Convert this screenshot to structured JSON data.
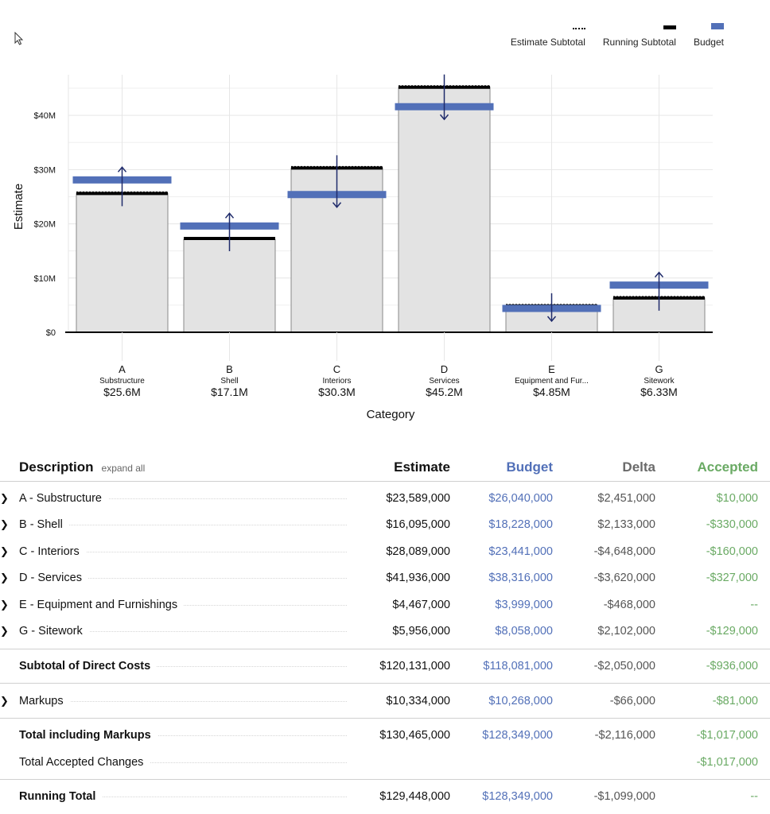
{
  "legend": {
    "estimate_subtotal": "Estimate Subtotal",
    "running_subtotal": "Running Subtotal",
    "budget": "Budget"
  },
  "colors": {
    "budget": "#5270b8",
    "accepted": "#6aaa64",
    "bar_fill": "#e3e3e3"
  },
  "chart_data": {
    "type": "bar",
    "xlabel": "Category",
    "ylabel": "Estimate",
    "ylim": [
      0,
      47.5
    ],
    "yticks": [
      0,
      10,
      20,
      30,
      40
    ],
    "ytick_labels": [
      "$0",
      "$10M",
      "$20M",
      "$30M",
      "$40M"
    ],
    "categories": [
      "A",
      "B",
      "C",
      "D",
      "E",
      "G"
    ],
    "category_names": [
      "Substructure",
      "Shell",
      "Interiors",
      "Services",
      "Equipment and Fur...",
      "Sitework"
    ],
    "category_totals": [
      "$25.6M",
      "$17.1M",
      "$30.3M",
      "$45.2M",
      "$4.85M",
      "$6.33M"
    ],
    "series": [
      {
        "name": "Estimate Subtotal",
        "values": [
          25.6,
          17.1,
          30.3,
          45.2,
          4.85,
          6.33
        ]
      },
      {
        "name": "Running Subtotal",
        "values": [
          25.6,
          17.3,
          30.3,
          45.2,
          4.85,
          6.33
        ]
      },
      {
        "name": "Budget",
        "values": [
          28.1,
          19.6,
          25.4,
          41.6,
          4.4,
          8.7
        ]
      }
    ],
    "grid": true,
    "legend_position": "top-right"
  },
  "table": {
    "headers": {
      "description": "Description",
      "expand_all": "expand all",
      "estimate": "Estimate",
      "budget": "Budget",
      "delta": "Delta",
      "accepted": "Accepted"
    },
    "rows": [
      {
        "desc": "A - Substructure",
        "estimate": "$23,589,000",
        "budget": "$26,040,000",
        "delta": "$2,451,000",
        "accepted": "$10,000"
      },
      {
        "desc": "B - Shell",
        "estimate": "$16,095,000",
        "budget": "$18,228,000",
        "delta": "$2,133,000",
        "accepted": "-$330,000"
      },
      {
        "desc": "C - Interiors",
        "estimate": "$28,089,000",
        "budget": "$23,441,000",
        "delta": "-$4,648,000",
        "accepted": "-$160,000"
      },
      {
        "desc": "D - Services",
        "estimate": "$41,936,000",
        "budget": "$38,316,000",
        "delta": "-$3,620,000",
        "accepted": "-$327,000"
      },
      {
        "desc": "E - Equipment and Furnishings",
        "estimate": "$4,467,000",
        "budget": "$3,999,000",
        "delta": "-$468,000",
        "accepted": "--"
      },
      {
        "desc": "G - Sitework",
        "estimate": "$5,956,000",
        "budget": "$8,058,000",
        "delta": "$2,102,000",
        "accepted": "-$129,000"
      }
    ],
    "subtotal": {
      "desc": "Subtotal of Direct Costs",
      "estimate": "$120,131,000",
      "budget": "$118,081,000",
      "delta": "-$2,050,000",
      "accepted": "-$936,000"
    },
    "markups": {
      "desc": "Markups",
      "estimate": "$10,334,000",
      "budget": "$10,268,000",
      "delta": "-$66,000",
      "accepted": "-$81,000"
    },
    "total": {
      "desc": "Total including Markups",
      "estimate": "$130,465,000",
      "budget": "$128,349,000",
      "delta": "-$2,116,000",
      "accepted": "-$1,017,000"
    },
    "accepted_changes": {
      "desc": "Total Accepted Changes",
      "accepted": "-$1,017,000"
    },
    "running_total": {
      "desc": "Running Total",
      "estimate": "$129,448,000",
      "budget": "$128,349,000",
      "delta": "-$1,099,000",
      "accepted": "--"
    }
  }
}
